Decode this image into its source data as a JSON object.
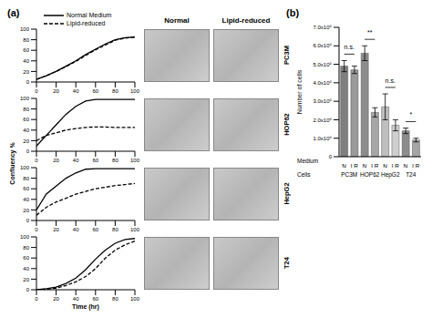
{
  "figure": {
    "panel_labels": [
      "(a)",
      "(b)"
    ],
    "y_label": "Confluency %",
    "image_columns": [
      "Normal",
      "Lipid-reduced"
    ],
    "image_rows": [
      "PC3M",
      "HOP62",
      "HepG2",
      "T24"
    ]
  },
  "chart_data": [
    {
      "type": "line",
      "x": [
        0,
        10,
        20,
        30,
        40,
        50,
        60,
        70,
        80,
        90,
        100
      ],
      "xlim": [
        0,
        100
      ],
      "xticks": [
        0,
        20,
        40,
        60,
        80,
        100
      ],
      "ylim": [
        0,
        100
      ],
      "yticks": [
        0,
        20,
        40,
        60,
        80,
        100
      ],
      "legend": "top-left",
      "series": [
        {
          "name": "Normal Medium",
          "color": "#000000",
          "line_style": "solid",
          "values": [
            5,
            12,
            20,
            30,
            40,
            52,
            62,
            72,
            80,
            84,
            85
          ]
        },
        {
          "name": "Lipid-reduced",
          "color": "#000000",
          "line_style": "dashed",
          "values": [
            5,
            12,
            20,
            29,
            39,
            50,
            61,
            70,
            79,
            83,
            85
          ]
        }
      ]
    },
    {
      "type": "line",
      "x": [
        0,
        10,
        20,
        30,
        40,
        50,
        60,
        70,
        80,
        90,
        100
      ],
      "xlim": [
        0,
        100
      ],
      "xticks": [
        0,
        20,
        40,
        60,
        80,
        100
      ],
      "ylim": [
        0,
        100
      ],
      "yticks": [
        0,
        20,
        40,
        60,
        80,
        100
      ],
      "series": [
        {
          "name": "Normal Medium",
          "color": "#000000",
          "line_style": "solid",
          "values": [
            10,
            30,
            50,
            70,
            85,
            95,
            98,
            98,
            98,
            98,
            98
          ]
        },
        {
          "name": "Lipid-reduced",
          "color": "#000000",
          "line_style": "dashed",
          "values": [
            20,
            30,
            35,
            40,
            43,
            45,
            46,
            46,
            45,
            45,
            45
          ]
        }
      ]
    },
    {
      "type": "line",
      "x": [
        0,
        10,
        20,
        30,
        40,
        50,
        60,
        70,
        80,
        90,
        100
      ],
      "xlim": [
        0,
        100
      ],
      "xticks": [
        0,
        20,
        40,
        60,
        80,
        100
      ],
      "ylim": [
        0,
        100
      ],
      "yticks": [
        0,
        20,
        40,
        60,
        80,
        100
      ],
      "series": [
        {
          "name": "Normal Medium",
          "color": "#000000",
          "line_style": "solid",
          "values": [
            20,
            50,
            65,
            80,
            90,
            97,
            98,
            98,
            98,
            98,
            98
          ]
        },
        {
          "name": "Lipid-reduced",
          "color": "#000000",
          "line_style": "dashed",
          "values": [
            10,
            25,
            35,
            42,
            50,
            55,
            60,
            63,
            66,
            68,
            70
          ]
        }
      ]
    },
    {
      "type": "line",
      "x": [
        0,
        10,
        20,
        30,
        40,
        50,
        60,
        70,
        80,
        90,
        100
      ],
      "xlim": [
        0,
        100
      ],
      "xticks": [
        0,
        20,
        40,
        60,
        80,
        100
      ],
      "ylim": [
        0,
        100
      ],
      "yticks": [
        0,
        20,
        40,
        60,
        80,
        100
      ],
      "x_label": "Time (hr)",
      "series": [
        {
          "name": "Normal Medium",
          "color": "#000000",
          "line_style": "solid",
          "values": [
            0,
            2,
            5,
            12,
            22,
            38,
            58,
            75,
            88,
            95,
            97
          ]
        },
        {
          "name": "Lipid-reduced",
          "color": "#000000",
          "line_style": "dashed",
          "values": [
            0,
            1,
            3,
            8,
            15,
            25,
            40,
            60,
            75,
            85,
            92
          ]
        }
      ]
    },
    {
      "type": "bar",
      "y_label": "Number of cells",
      "categories": [
        "N",
        "LR",
        "N",
        "LR",
        "N",
        "LR",
        "N",
        "LR"
      ],
      "values": [
        490000,
        470000,
        560000,
        240000,
        270000,
        170000,
        140000,
        90000
      ],
      "errors": [
        30000,
        20000,
        40000,
        25000,
        70000,
        30000,
        15000,
        10000
      ],
      "colors": [
        "#7f7f7f",
        "#9a9a9a",
        "#8c8c8c",
        "#a6a6a6",
        "#bfbfbf",
        "#cfcfcf",
        "#8c8c8c",
        "#a6a6a6"
      ],
      "ylim": [
        0,
        700000
      ],
      "yticks": [
        {
          "value": 0,
          "label": "0"
        },
        {
          "value": 100000,
          "label": "1.0x10⁵"
        },
        {
          "value": 200000,
          "label": "2.0x10⁵"
        },
        {
          "value": 300000,
          "label": "3.0x10⁵"
        },
        {
          "value": 400000,
          "label": "4.0x10⁵"
        },
        {
          "value": 500000,
          "label": "5.0x10⁵"
        },
        {
          "value": 600000,
          "label": "6.0x10⁵"
        },
        {
          "value": 700000,
          "label": "7.0x10⁵"
        }
      ],
      "groups": [
        "PC3M",
        "HOP62",
        "HepG2",
        "T24"
      ],
      "annotations": [
        "n.s.",
        "**",
        "n.s.",
        "*"
      ],
      "row_labels": [
        "Medium",
        "Cells"
      ]
    }
  ]
}
